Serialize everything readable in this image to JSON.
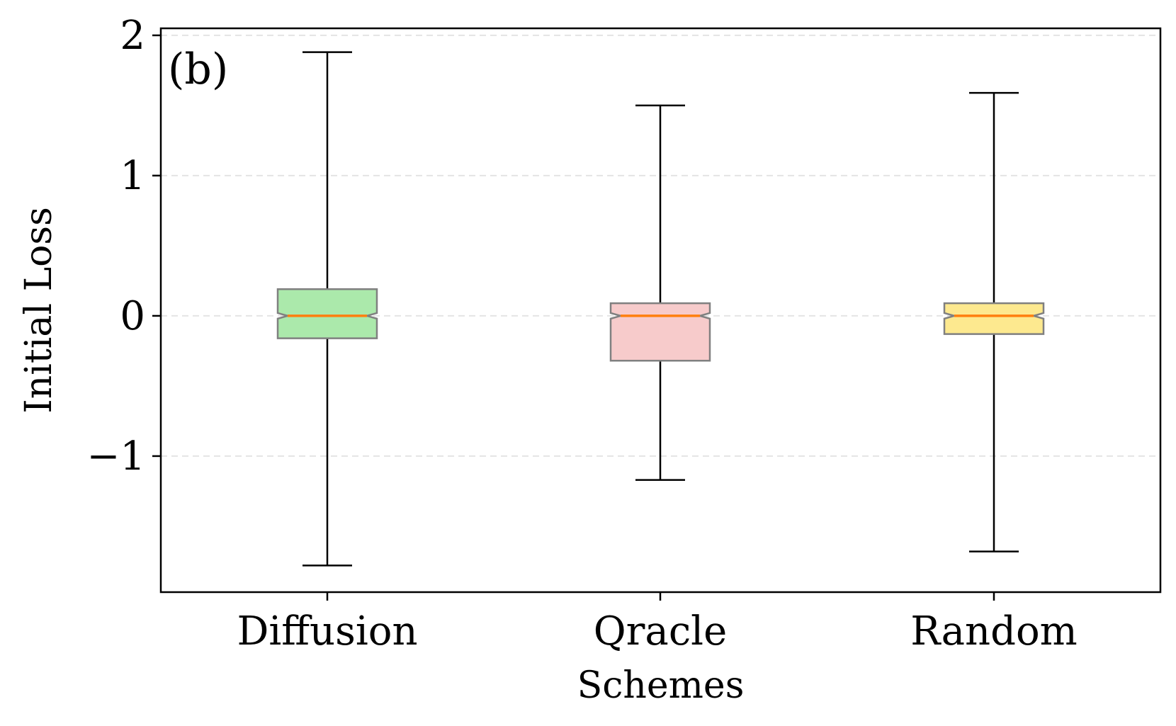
{
  "chart_data": {
    "type": "box",
    "panel_label": "(b)",
    "xlabel": "Schemes",
    "ylabel": "Initial Loss",
    "ylim": [
      -1.97,
      2.05
    ],
    "yticks": [
      2,
      1,
      0,
      -1
    ],
    "ytick_labels": [
      "2",
      "1",
      "0",
      "−1"
    ],
    "grid": "horizontal dashed",
    "notched": true,
    "categories": [
      "Diffusion",
      "Qracle",
      "Random"
    ],
    "boxes": [
      {
        "name": "Diffusion",
        "whisker_low": -1.78,
        "q1": -0.16,
        "median": 0.0,
        "q3": 0.19,
        "whisker_high": 1.88,
        "notch_low": -0.02,
        "notch_high": 0.02,
        "color": "#abe9ab"
      },
      {
        "name": "Qracle",
        "whisker_low": -1.17,
        "q1": -0.32,
        "median": 0.0,
        "q3": 0.09,
        "whisker_high": 1.5,
        "notch_low": -0.02,
        "notch_high": 0.02,
        "color": "#f7cbcb"
      },
      {
        "name": "Random",
        "whisker_low": -1.68,
        "q1": -0.13,
        "median": 0.0,
        "q3": 0.09,
        "whisker_high": 1.59,
        "notch_low": -0.02,
        "notch_high": 0.02,
        "color": "#fde98f"
      }
    ],
    "colors": {
      "median": "#ff7f0e",
      "box_edge": "#808080",
      "whisker": "#000000",
      "grid": "#e4e4e4"
    }
  }
}
